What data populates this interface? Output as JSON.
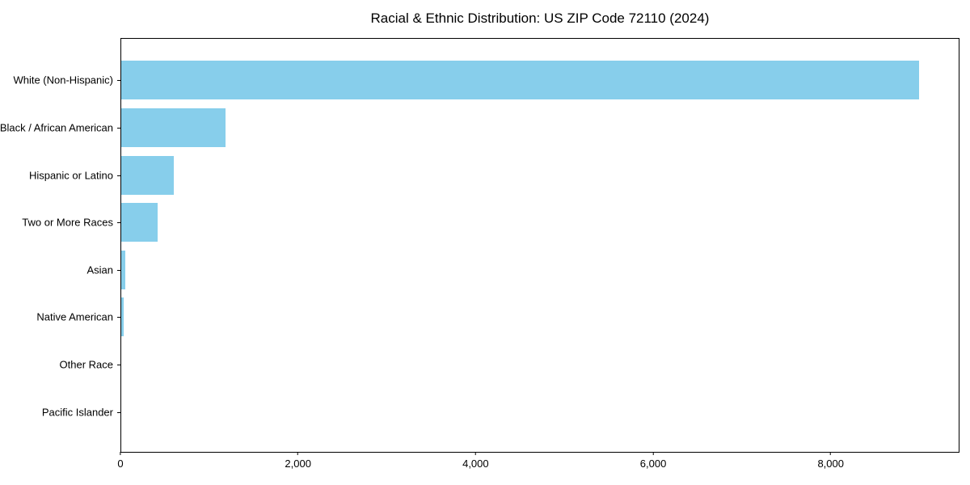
{
  "chart_data": {
    "type": "bar",
    "orientation": "horizontal",
    "title": "Racial & Ethnic Distribution: US ZIP Code 72110 (2024)",
    "xlabel": "",
    "ylabel": "",
    "categories": [
      "White (Non-Hispanic)",
      "Black / African American",
      "Hispanic or Latino",
      "Two or More Races",
      "Asian",
      "Native American",
      "Other Race",
      "Pacific Islander"
    ],
    "values": [
      9000,
      1175,
      595,
      410,
      50,
      30,
      0,
      0
    ],
    "xlim": [
      0,
      9450
    ],
    "xticks": [
      {
        "value": 0,
        "label": "0"
      },
      {
        "value": 2000,
        "label": "2,000"
      },
      {
        "value": 4000,
        "label": "4,000"
      },
      {
        "value": 6000,
        "label": "6,000"
      },
      {
        "value": 8000,
        "label": "8,000"
      }
    ],
    "bar_color": "#87CEEB",
    "frame_color": "#000000",
    "background_color": "#ffffff",
    "grid": false,
    "legend": null
  }
}
